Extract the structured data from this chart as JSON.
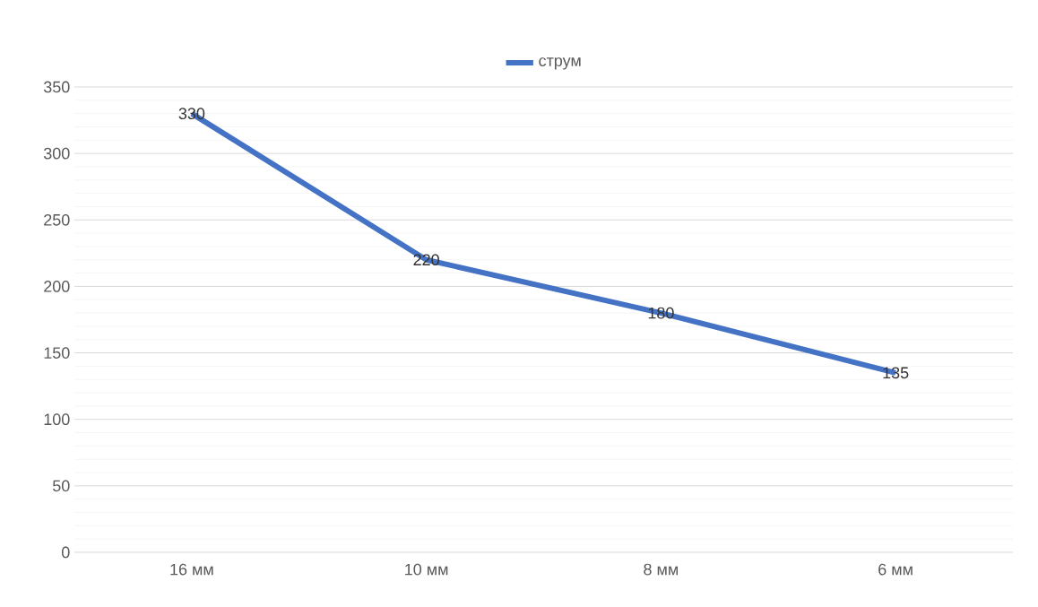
{
  "chart_data": {
    "type": "line",
    "categories": [
      "16 мм",
      "10 мм",
      "8 мм",
      "6 мм"
    ],
    "series": [
      {
        "name": "струм",
        "color": "#4472c4",
        "values": [
          330,
          220,
          180,
          135
        ]
      }
    ],
    "ylim": [
      0,
      350
    ],
    "yticks": [
      0,
      50,
      100,
      150,
      200,
      250,
      300,
      350
    ],
    "grid": "y",
    "legend": "top",
    "data_labels": true,
    "marker": "none",
    "line_style": "solid"
  }
}
